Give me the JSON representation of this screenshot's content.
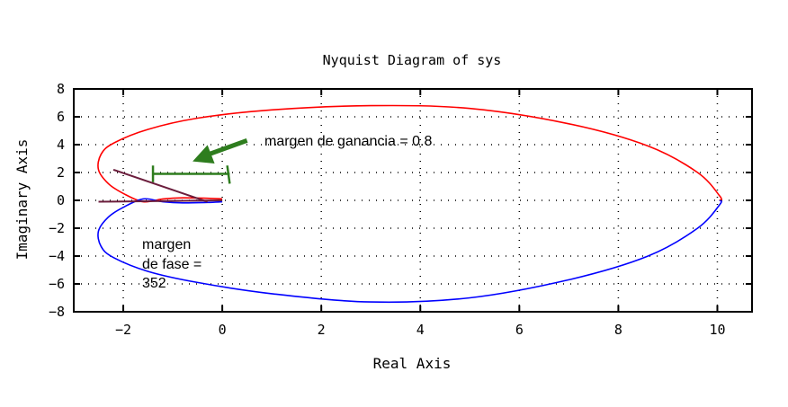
{
  "chart_data": {
    "type": "line",
    "title": "Nyquist Diagram of sys",
    "xlabel": "Real Axis",
    "ylabel": "Imaginary Axis",
    "xlim": [
      -3,
      10.7
    ],
    "ylim": [
      -8,
      8
    ],
    "xticks": [
      -2,
      0,
      2,
      4,
      6,
      8,
      10
    ],
    "yticks": [
      -8,
      -6,
      -4,
      -2,
      0,
      2,
      4,
      6,
      8
    ],
    "grid": true,
    "series": [
      {
        "color": "#ff0000",
        "x": [
          0,
          -0.3,
          -0.8,
          -1.2,
          -1.6,
          -2.0,
          -2.3,
          -2.5,
          -2.45,
          -2.2,
          -1.5,
          -0.5,
          1,
          3,
          5,
          7,
          8.6,
          9.6,
          10.05,
          10.05
        ],
        "y": [
          0.1,
          0.15,
          0.18,
          0.1,
          -0.1,
          0.5,
          1.2,
          2.2,
          3.3,
          4.1,
          5.1,
          5.9,
          6.5,
          6.8,
          6.6,
          5.5,
          3.9,
          2.0,
          0.3,
          0
        ]
      },
      {
        "color": "#0000ff",
        "x": [
          0,
          -0.3,
          -0.8,
          -1.2,
          -1.6,
          -2.0,
          -2.3,
          -2.5,
          -2.45,
          -2.2,
          -1.5,
          -0.5,
          1,
          3,
          5,
          7,
          8.6,
          9.6,
          10.05,
          10.05
        ],
        "y": [
          -0.1,
          -0.15,
          -0.18,
          -0.1,
          0.1,
          -0.5,
          -1.2,
          -2.2,
          -3.3,
          -4.1,
          -5.1,
          -5.9,
          -6.7,
          -7.3,
          -7.0,
          -5.7,
          -4.0,
          -2.0,
          -0.3,
          0
        ]
      }
    ],
    "annotations": [
      {
        "text": "margen de ganancia = 0.8",
        "arrow_from": [
          0.5,
          4.3
        ],
        "arrow_to": [
          -0.6,
          2.8
        ],
        "color": "#2e7d1e"
      },
      {
        "text_lines": [
          "margen",
          "de fase =",
          "352"
        ],
        "color": "#000000"
      }
    ]
  }
}
